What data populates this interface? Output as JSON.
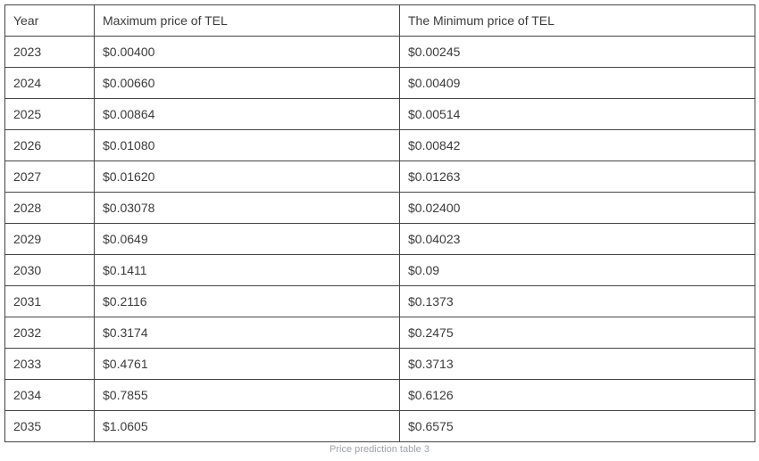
{
  "chart_data": {
    "type": "table",
    "title": "Price prediction table 3",
    "columns": [
      "Year",
      "Maximum price of TEL",
      "The Minimum price of TEL"
    ],
    "rows": [
      {
        "year": "2023",
        "max": "$0.00400",
        "min": "$0.00245"
      },
      {
        "year": "2024",
        "max": "$0.00660",
        "min": "$0.00409"
      },
      {
        "year": "2025",
        "max": "$0.00864",
        "min": "$0.00514"
      },
      {
        "year": "2026",
        "max": "$0.01080",
        "min": "$0.00842"
      },
      {
        "year": "2027",
        "max": "$0.01620",
        "min": "$0.01263"
      },
      {
        "year": "2028",
        "max": "$0.03078",
        "min": "$0.02400"
      },
      {
        "year": "2029",
        "max": "$0.0649",
        "min": "$0.04023"
      },
      {
        "year": "2030",
        "max": "$0.1411",
        "min": "$0.09"
      },
      {
        "year": "2031",
        "max": "$0.2116",
        "min": "$0.1373"
      },
      {
        "year": "2032",
        "max": "$0.3174",
        "min": "$0.2475"
      },
      {
        "year": "2033",
        "max": "$0.4761",
        "min": "$0.3713"
      },
      {
        "year": "2034",
        "max": "$0.7855",
        "min": "$0.6126"
      },
      {
        "year": "2035",
        "max": "$1.0605",
        "min": "$0.6575"
      }
    ],
    "layout": {
      "grid": "all-borders",
      "caption_position": "bottom-center"
    },
    "colors": {
      "border": "#454545",
      "text": "#3b3b3b",
      "caption_text": "#9aa3ab",
      "background": "#ffffff"
    }
  }
}
